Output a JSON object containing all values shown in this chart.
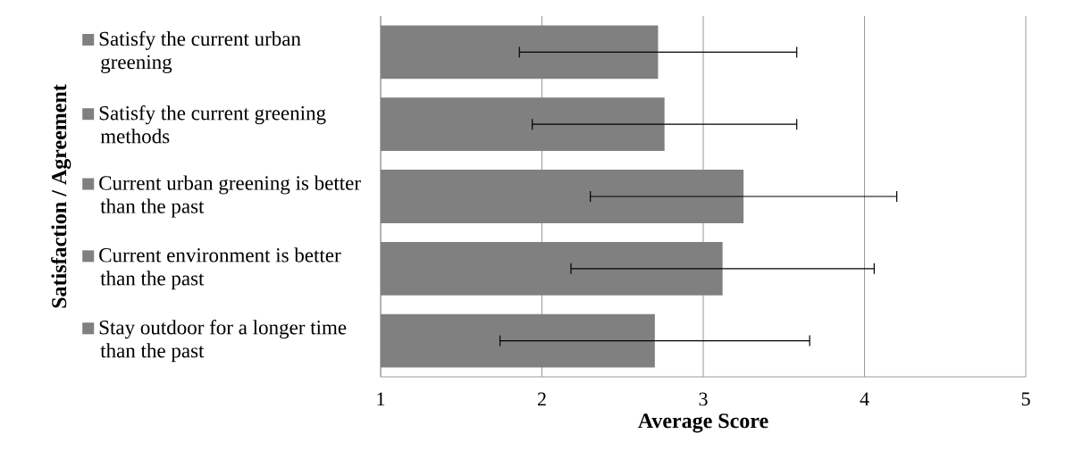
{
  "chart_data": {
    "type": "bar",
    "orientation": "horizontal",
    "xlabel": "Average Score",
    "ylabel": "Satisfaction / Agreement",
    "categories": [
      "Satisfy the current urban greening",
      "Satisfy the current greening methods",
      "Current urban greening is better than the past",
      "Current environment is better than the past",
      "Stay outdoor for a longer time than the past"
    ],
    "values": [
      2.72,
      2.76,
      3.25,
      3.12,
      2.7
    ],
    "errors": [
      0.86,
      0.82,
      0.95,
      0.94,
      0.96
    ],
    "color": "#808080",
    "xlim": [
      1,
      5
    ],
    "xticks": [
      1,
      2,
      3,
      4,
      5
    ],
    "grid": "x"
  }
}
